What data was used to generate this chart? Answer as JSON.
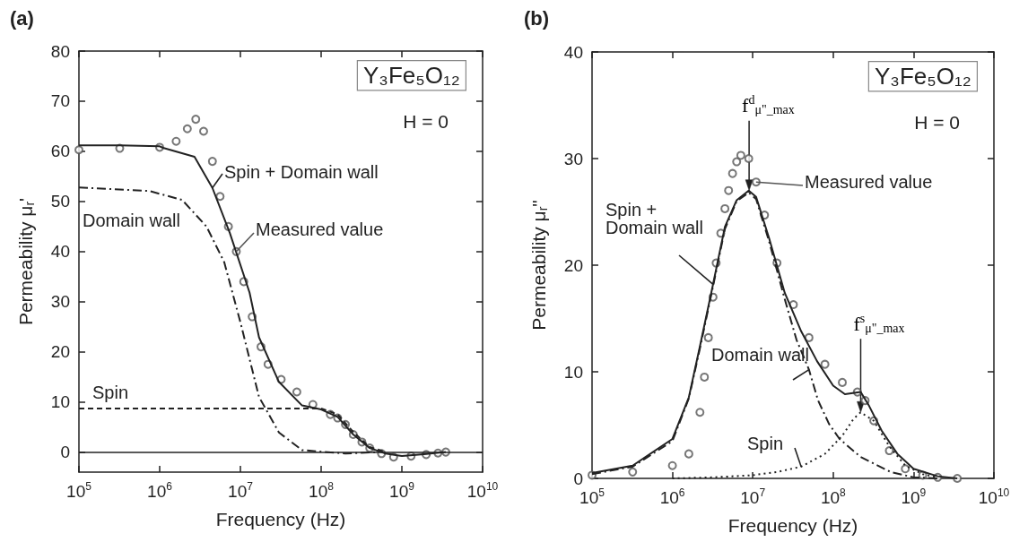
{
  "chart_data": [
    {
      "type": "line",
      "title": "(a)",
      "xlabel": "Frequency (Hz)",
      "ylabel": "Permeability μ$_{r}$'",
      "log": "x",
      "xlim": [
        100000,
        10000000000
      ],
      "xticks": [
        {
          "value": 100000,
          "label": "10$^{5}$"
        },
        {
          "value": 1000000,
          "label": "10$^{6}$"
        },
        {
          "value": 10000000,
          "label": "10$^{7}$"
        },
        {
          "value": 100000000,
          "label": "10$^{8}$"
        },
        {
          "value": 1000000000,
          "label": "10$^{9}$"
        },
        {
          "value": 10000000000,
          "label": "10$^{10}$"
        }
      ],
      "ylim": [
        -4,
        80
      ],
      "yticks": [
        0,
        10,
        20,
        30,
        40,
        50,
        60,
        70,
        80
      ],
      "grid": false,
      "ref_lines": [
        {
          "axis": "y",
          "value": 0,
          "color": "#222222",
          "line_style": "solid"
        }
      ],
      "annotations": [
        "Y₃Fe₅O₁₂",
        "H = 0"
      ],
      "series": [
        {
          "name": "Measured value",
          "type": "scatter",
          "marker": "circle",
          "color": "#555555",
          "x": [
            100000.0,
            320000.0,
            1000000.0,
            1600000.0,
            2200000.0,
            2800000.0,
            3500000.0,
            4500000.0,
            5600000.0,
            7100000.0,
            8900000.0,
            11000000.0,
            14000000.0,
            18000000.0,
            22000000.0,
            32000000.0,
            50000000.0,
            79000000.0,
            130000000.0,
            160000000.0,
            200000000.0,
            250000000.0,
            320000000.0,
            400000000.0,
            560000000.0,
            790000000.0,
            1300000000.0,
            2000000000.0,
            2800000000.0,
            3500000000.0
          ],
          "values": [
            60.3,
            60.6,
            60.8,
            62,
            64.5,
            66.4,
            64,
            58,
            51,
            45,
            40,
            34,
            27,
            21,
            17.5,
            14.5,
            12,
            9.5,
            7.5,
            6.8,
            5.5,
            3.5,
            2,
            0.8,
            -0.3,
            -1,
            -0.8,
            -0.5,
            -0.2,
            0
          ]
        },
        {
          "name": "Spin + Domain wall",
          "marker": "none",
          "line_style": "solid",
          "color": "#222222",
          "x": [
            100000.0,
            320000.0,
            1000000.0,
            1100000.0,
            2700000.0,
            4500000.0,
            7400000.0,
            13000000.0,
            17000000.0,
            30000000.0,
            58000000.0,
            100000000.0,
            160000000.0,
            250000000.0,
            400000000.0,
            630000000.0,
            1000000000.0,
            2000000000.0,
            3500000000.0
          ],
          "values": [
            61.2,
            61.2,
            61,
            60.7,
            58.9,
            52.7,
            43.7,
            31.8,
            22.9,
            14,
            9.3,
            8.5,
            7,
            3.5,
            0.8,
            -0.3,
            -0.8,
            -0.4,
            0
          ]
        },
        {
          "name": "Domain wall",
          "marker": "none",
          "line_style": "dashdot",
          "color": "#222222",
          "x": [
            100000.0,
            740000.0,
            1900000.0,
            3800000.0,
            6300000.0,
            10000000.0,
            17000000.0,
            30000000.0,
            58000000.0,
            200000000.0,
            500000000.0
          ],
          "values": [
            52.8,
            52.1,
            50.3,
            45,
            37.9,
            25.9,
            11,
            3.9,
            0.4,
            -0.3,
            0
          ]
        },
        {
          "name": "Spin",
          "marker": "none",
          "line_style": "dashed",
          "color": "#222222",
          "x": [
            100000.0,
            100000000.0,
            160000000.0,
            250000000.0,
            400000000.0,
            630000000.0
          ],
          "values": [
            8.7,
            8.7,
            7.5,
            4,
            1,
            0
          ]
        }
      ]
    },
    {
      "type": "line",
      "title": "(b)",
      "xlabel": "Frequency (Hz)",
      "ylabel": "Permeability μ$_{r}$\"",
      "log": "x",
      "xlim": [
        100000,
        10000000000
      ],
      "xticks": [
        {
          "value": 100000,
          "label": "10$^{5}$"
        },
        {
          "value": 1000000,
          "label": "10$^{6}$"
        },
        {
          "value": 10000000,
          "label": "10$^{7}$"
        },
        {
          "value": 100000000,
          "label": "10$^{8}$"
        },
        {
          "value": 1000000000,
          "label": "10$^{9}$"
        },
        {
          "value": 10000000000,
          "label": "10$^{10}$"
        }
      ],
      "ylim": [
        0,
        40
      ],
      "yticks": [
        0,
        10,
        20,
        30,
        40
      ],
      "grid": false,
      "annotations": [
        {
          "text": "f$^{d}$$_{μ\"_max}$",
          "x": 9000000,
          "y": 27
        },
        {
          "text": "f$^{s}$$_{μ\"_max}$",
          "x": 220000000,
          "y": 6.2
        },
        "Y₃Fe₅O₁₂",
        "H = 0"
      ],
      "series": [
        {
          "name": "Measured value",
          "type": "scatter",
          "marker": "circle",
          "color": "#555555",
          "x": [
            100000.0,
            320000.0,
            1000000.0,
            1600000.0,
            2200000.0,
            2500000.0,
            2800000.0,
            3200000.0,
            3500000.0,
            4000000.0,
            4500000.0,
            5000000.0,
            5600000.0,
            6300000.0,
            7100000.0,
            8900000.0,
            11000000.0,
            14000000.0,
            20000000.0,
            32000000.0,
            50000000.0,
            79000000.0,
            130000000.0,
            200000000.0,
            250000000.0,
            320000000.0,
            500000000.0,
            790000000.0,
            1300000000.0,
            2000000000.0,
            3500000000.0
          ],
          "values": [
            0.3,
            0.6,
            1.2,
            2.3,
            6.2,
            9.5,
            13.2,
            17,
            20.2,
            23,
            25.3,
            27,
            28.6,
            29.7,
            30.3,
            30,
            27.8,
            24.7,
            20.2,
            16.3,
            13.2,
            10.7,
            9,
            8.1,
            7.3,
            5.4,
            2.6,
            0.9,
            0.3,
            0.1,
            0
          ]
        },
        {
          "name": "Spin + Domain wall",
          "marker": "none",
          "line_style": "solid",
          "color": "#222222",
          "x": [
            100000.0,
            320000.0,
            1000000.0,
            1600000.0,
            2200000.0,
            3200000.0,
            4500000.0,
            6300000.0,
            8900000.0,
            11000000.0,
            16000000.0,
            25000000.0,
            40000000.0,
            63000000.0,
            100000000.0,
            140000000.0,
            220000000.0,
            280000000.0,
            400000000.0,
            630000000.0,
            1000000000.0,
            2000000000.0,
            3500000000.0
          ],
          "values": [
            0.5,
            1.2,
            3.7,
            7.6,
            12.4,
            18.2,
            23.6,
            26.1,
            27,
            26.4,
            22.5,
            17.4,
            13.8,
            11,
            8.7,
            7.9,
            8.1,
            6.8,
            4.5,
            2.3,
            0.9,
            0.2,
            0
          ]
        },
        {
          "name": "Domain wall",
          "marker": "none",
          "line_style": "dashdot",
          "color": "#222222",
          "x": [
            100000.0,
            320000.0,
            1000000.0,
            1600000.0,
            2200000.0,
            3200000.0,
            4500000.0,
            6300000.0,
            8900000.0,
            11000000.0,
            16000000.0,
            25000000.0,
            35000000.0,
            50000000.0,
            65000000.0,
            89000000.0,
            120000000.0,
            220000000.0,
            520000000.0,
            1000000000.0,
            2000000000.0
          ],
          "values": [
            0.4,
            1.1,
            3.5,
            7.5,
            12.2,
            18,
            23.4,
            26,
            26.8,
            26.2,
            22.2,
            16.8,
            13,
            10.2,
            7.3,
            5.1,
            3.7,
            2,
            0.6,
            0.1,
            0
          ]
        },
        {
          "name": "Spin",
          "marker": "none",
          "line_style": "dotted",
          "color": "#222222",
          "x": [
            1000000.0,
            3200000.0,
            10000000.0,
            20000000.0,
            40000000.0,
            79000000.0,
            130000000.0,
            180000000.0,
            220000000.0,
            320000000.0,
            500000000.0,
            790000000.0,
            1300000000.0,
            2000000000.0
          ],
          "values": [
            0,
            0.1,
            0.3,
            0.6,
            1.1,
            2.3,
            4,
            5.6,
            6.2,
            5.4,
            3,
            1.2,
            0.4,
            0.1
          ]
        }
      ]
    }
  ]
}
